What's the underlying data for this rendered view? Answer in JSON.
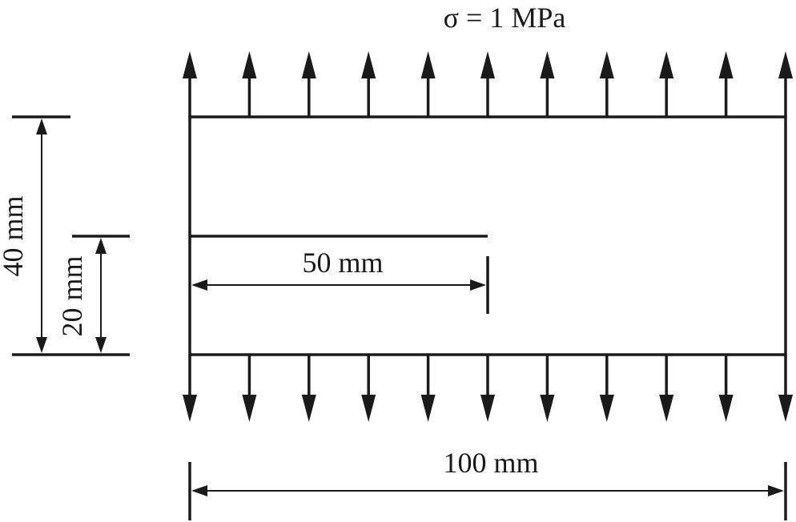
{
  "labels": {
    "stress": "σ = 1 MPa",
    "height_total": "40 mm",
    "height_crack": "20 mm",
    "crack_length": "50 mm",
    "width": "100 mm"
  },
  "load": {
    "arrow_count_per_edge": 11
  },
  "colors": {
    "ink": "#1a1a1a",
    "background": "#ffffff"
  }
}
